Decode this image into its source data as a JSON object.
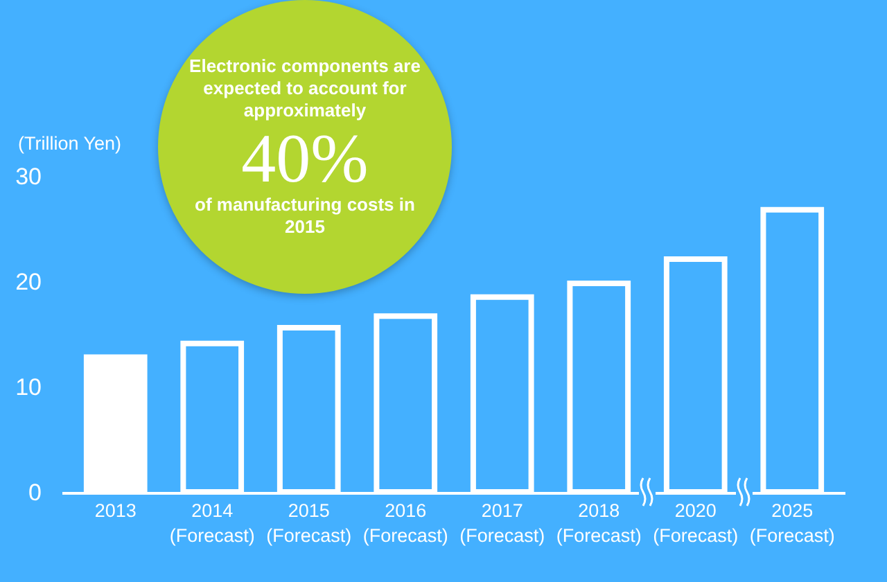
{
  "chart_data": {
    "type": "bar",
    "ylabel": "(Trillion Yen)",
    "categories": [
      "2013",
      "2014\n(Forecast)",
      "2015\n(Forecast)",
      "2016\n(Forecast)",
      "2017\n(Forecast)",
      "2018\n(Forecast)",
      "2020\n(Forecast)",
      "2025\n(Forecast)"
    ],
    "values": [
      12.8,
      14.1,
      15.6,
      16.7,
      18.5,
      19.8,
      22.1,
      26.8
    ],
    "color": "#ffffff",
    "colors": [
      "#ffffff",
      "#44b0ff",
      "#44b0ff",
      "#44b0ff",
      "#44b0ff",
      "#44b0ff",
      "#44b0ff",
      "#44b0ff"
    ],
    "ylim": [
      0,
      30
    ],
    "yticks": [
      0,
      10,
      20,
      30
    ],
    "annotations": [
      "Electronic components are expected to account for approximately",
      "40%",
      "of manufacturing costs in 2015"
    ]
  }
}
